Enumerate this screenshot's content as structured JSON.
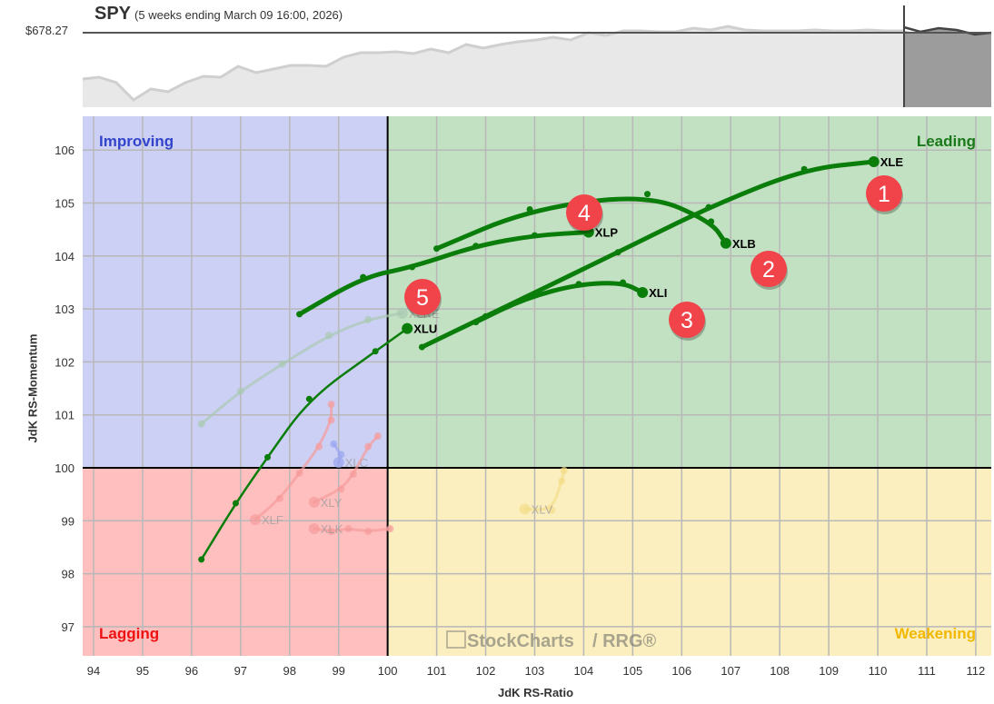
{
  "header": {
    "symbol": "SPY",
    "subtitle": "(5 weeks ending March 09 16:00, 2026)",
    "price_label": "$678.27"
  },
  "quadrants": {
    "improving": {
      "label": "Improving",
      "bg": "#ccd0f4",
      "text_color": "#3344cc"
    },
    "leading": {
      "label": "Leading",
      "bg": "#c2e0c2",
      "text_color": "#1a7a1a"
    },
    "lagging": {
      "label": "Lagging",
      "bg": "#ffbfbf",
      "text_color": "#ee1111"
    },
    "weakening": {
      "label": "Weakening",
      "bg": "#fbefbf",
      "text_color": "#f2b800"
    }
  },
  "watermark": {
    "brand": "StockCharts",
    "suffix": "/ RRG®"
  },
  "chart_data": {
    "type": "scatter",
    "title": "SPY (5 weeks ending March 09 16:00, 2026)",
    "xlabel": "JdK RS-Ratio",
    "ylabel": "JdK RS-Momentum",
    "xlim": [
      93.8,
      112.3
    ],
    "ylim": [
      96.3,
      106.7
    ],
    "xticks": [
      94,
      95,
      96,
      97,
      98,
      99,
      100,
      101,
      102,
      103,
      104,
      105,
      106,
      107,
      108,
      109,
      110,
      111,
      112
    ],
    "yticks": [
      97,
      98,
      99,
      100,
      101,
      102,
      103,
      104,
      105,
      106
    ],
    "grid": true,
    "center": [
      100,
      100
    ],
    "series": [
      {
        "name": "XLE",
        "highlighted": true,
        "rank_badge": 1,
        "points": [
          [
            100.7,
            102.28
          ],
          [
            102.0,
            102.86
          ],
          [
            104.7,
            104.07
          ],
          [
            106.55,
            104.92
          ],
          [
            108.5,
            105.64
          ],
          [
            109.92,
            105.78
          ]
        ]
      },
      {
        "name": "XLB",
        "highlighted": true,
        "rank_badge": 2,
        "points": [
          [
            101.0,
            104.14
          ],
          [
            102.9,
            104.88
          ],
          [
            105.3,
            105.17
          ],
          [
            106.6,
            104.65
          ],
          [
            106.9,
            104.24
          ]
        ]
      },
      {
        "name": "XLI",
        "highlighted": true,
        "rank_badge": 3,
        "points": [
          [
            101.8,
            102.75
          ],
          [
            102.8,
            103.2
          ],
          [
            103.9,
            103.47
          ],
          [
            104.8,
            103.5
          ],
          [
            105.2,
            103.31
          ]
        ]
      },
      {
        "name": "XLP",
        "highlighted": true,
        "rank_badge": 4,
        "points": [
          [
            98.2,
            102.9
          ],
          [
            99.5,
            103.6
          ],
          [
            100.5,
            103.79
          ],
          [
            101.8,
            104.19
          ],
          [
            103.0,
            104.39
          ],
          [
            104.1,
            104.45
          ]
        ]
      },
      {
        "name": "XLU",
        "highlighted": true,
        "rank_badge": 5,
        "points": [
          [
            96.2,
            98.27
          ],
          [
            96.9,
            99.33
          ],
          [
            97.55,
            100.2
          ],
          [
            98.4,
            101.3
          ],
          [
            99.75,
            102.2
          ],
          [
            100.4,
            102.63
          ]
        ]
      },
      {
        "name": "XLRE",
        "highlighted": false,
        "points": [
          [
            96.2,
            100.83
          ],
          [
            97.0,
            101.45
          ],
          [
            97.85,
            101.96
          ],
          [
            98.8,
            102.5
          ],
          [
            99.6,
            102.8
          ],
          [
            100.3,
            102.92
          ]
        ]
      },
      {
        "name": "XLC",
        "highlighted": false,
        "points": [
          [
            98.9,
            100.45
          ],
          [
            99.05,
            100.25
          ],
          [
            99.0,
            100.1
          ]
        ]
      },
      {
        "name": "XLY",
        "highlighted": false,
        "points": [
          [
            99.8,
            100.6
          ],
          [
            99.6,
            100.4
          ],
          [
            99.3,
            99.88
          ],
          [
            99.05,
            99.6
          ],
          [
            98.5,
            99.35
          ]
        ]
      },
      {
        "name": "XLF",
        "highlighted": false,
        "points": [
          [
            98.85,
            101.2
          ],
          [
            98.85,
            100.9
          ],
          [
            98.6,
            100.4
          ],
          [
            98.2,
            99.9
          ],
          [
            97.8,
            99.42
          ],
          [
            97.3,
            99.02
          ]
        ]
      },
      {
        "name": "XLK",
        "highlighted": false,
        "points": [
          [
            100.05,
            98.85
          ],
          [
            99.6,
            98.8
          ],
          [
            99.2,
            98.85
          ],
          [
            98.85,
            98.8
          ],
          [
            98.5,
            98.85
          ]
        ]
      },
      {
        "name": "XLV",
        "highlighted": false,
        "points": [
          [
            103.6,
            99.95
          ],
          [
            103.55,
            99.75
          ],
          [
            103.35,
            99.2
          ],
          [
            102.8,
            99.22
          ]
        ]
      }
    ]
  },
  "benchmark_line": {
    "label": "$678.27",
    "note": "SPY price history sparkline with last-week highlighted region"
  },
  "axes": {
    "x_title": "JdK RS-Ratio",
    "y_title": "JdK RS-Momentum"
  }
}
